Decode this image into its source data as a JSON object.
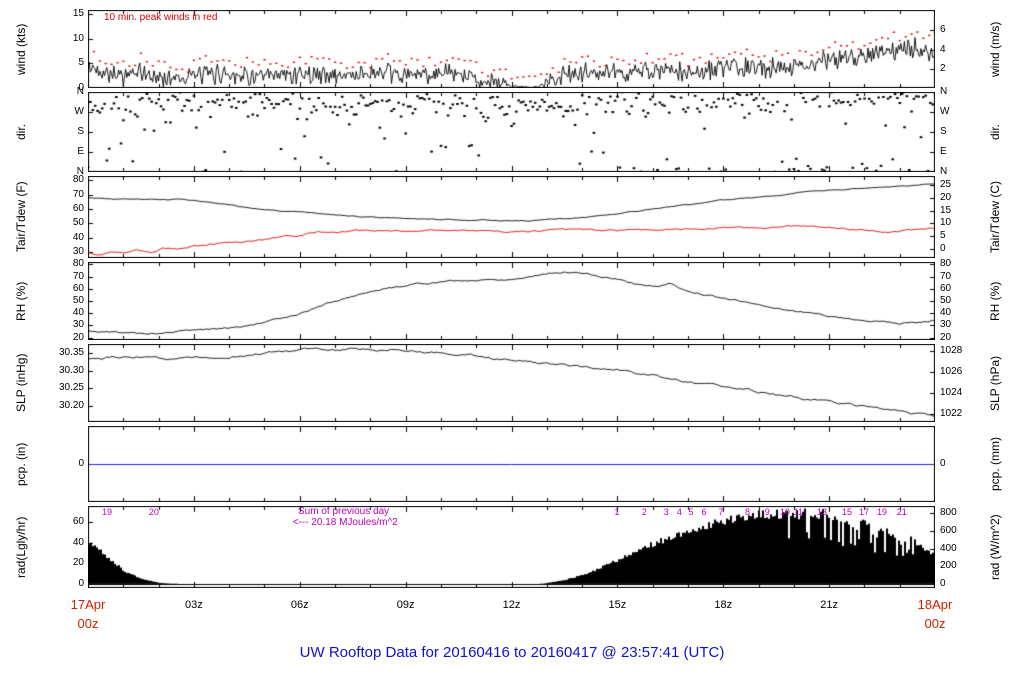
{
  "title": "UW Rooftop Data for 20160416  to  20160417 @ 23:57:41  (UTC)",
  "colors": {
    "title_blue": "#1111cc",
    "date_red": "#cc2200",
    "peak_red": "#dd0000",
    "dew_red": "#dd0000",
    "precip_blue": "#2222cc",
    "solar_magenta": "#bb00bb",
    "trace_black": "#000000"
  },
  "x_axis": {
    "range_hours": [
      0,
      24
    ],
    "major_tick_hours": [
      0,
      3,
      6,
      9,
      12,
      15,
      18,
      21,
      24
    ],
    "minor_tick_step_hours": 1,
    "tick_labels": [
      {
        "text": "03z",
        "t": 3
      },
      {
        "text": "06z",
        "t": 6
      },
      {
        "text": "09z",
        "t": 9
      },
      {
        "text": "12z",
        "t": 12
      },
      {
        "text": "15z",
        "t": 15
      },
      {
        "text": "18z",
        "t": 18
      },
      {
        "text": "21z",
        "t": 21
      }
    ],
    "start_date": {
      "line1": "17Apr",
      "line2": "00z",
      "t": 0
    },
    "end_date": {
      "line1": "18Apr",
      "line2": "00z",
      "t": 24
    }
  },
  "chart_data": [
    {
      "id": "wind",
      "type": "line",
      "ylabel_left": "wind (kts)",
      "ylabel_right": "wind (m/s)",
      "yrange": [
        0,
        15.8
      ],
      "left_ticks": {
        "values": [
          0,
          5,
          10,
          15
        ],
        "labels": [
          "0",
          "5",
          "10",
          "15"
        ]
      },
      "right_ticks": {
        "values": [
          3.888,
          7.776,
          11.664
        ],
        "labels": [
          "2",
          "4",
          "6"
        ]
      },
      "annotation": "10 min. peak winds in red",
      "annotation_color": "#dd0000",
      "series": [
        {
          "name": "wind speed (kts)",
          "style": "line",
          "noise_mode": "spiky",
          "color": "#000000",
          "seed": 42,
          "noise": 2.4,
          "step_minutes": 2,
          "is_base": true,
          "points": {
            "t": [
              0,
              0.5,
              1,
              1.5,
              2,
              3,
              4,
              5,
              6,
              7,
              8,
              9,
              10,
              11,
              11.5,
              12,
              12.3,
              12.8,
              13,
              13.5,
              14,
              15,
              16,
              17,
              18,
              19,
              20,
              20.5,
              21,
              22,
              23,
              23.5,
              24
            ],
            "v": [
              4,
              3.5,
              2.5,
              3,
              2,
              2.5,
              3,
              2,
              3,
              2.5,
              3,
              2.5,
              3,
              2,
              1,
              0.3,
              0.1,
              0.1,
              1.5,
              2.5,
              3,
              3,
              3.5,
              3,
              4,
              4,
              4.5,
              5,
              5.5,
              7,
              7.5,
              8,
              6.5
            ]
          }
        },
        {
          "name": "10 min. peak wind (kts)",
          "style": "peaks",
          "color": "#dd0000",
          "seed": 43,
          "interval_minutes": 10,
          "extra": [
            0.7,
            2.3
          ]
        }
      ]
    },
    {
      "id": "dir",
      "type": "scatter",
      "ylabel_left": "dir.",
      "ylabel_right": "dir.",
      "yrange": [
        0,
        360
      ],
      "left_ticks": {
        "values": [
          360,
          270,
          180,
          90,
          0
        ],
        "labels": [
          "N",
          "W",
          "S",
          "E",
          "N"
        ]
      },
      "right_ticks": {
        "values": [
          360,
          270,
          180,
          90,
          0
        ],
        "labels": [
          "N",
          "W",
          "S",
          "E",
          "N"
        ]
      },
      "series": [
        {
          "name": "wind direction (deg)",
          "style": "scatter",
          "color": "#000000",
          "seed": 7,
          "step_minutes": 4,
          "spread_deg": 70,
          "random_fraction": 0.2,
          "points": {
            "t": [
              0,
              2,
              4,
              6,
              8,
              10,
              12,
              14,
              16,
              18,
              20,
              22,
              24
            ],
            "v": [
              300,
              290,
              305,
              295,
              300,
              310,
              280,
              300,
              315,
              325,
              330,
              340,
              330
            ]
          }
        }
      ]
    },
    {
      "id": "tair",
      "type": "line",
      "ylabel_left": "Tair/Tdew (F)",
      "ylabel_right": "Tair/Tdew (C)",
      "yrange": [
        26,
        83
      ],
      "left_ticks": {
        "values": [
          30,
          40,
          50,
          60,
          70,
          80
        ],
        "labels": [
          "30",
          "40",
          "50",
          "60",
          "70",
          "80"
        ]
      },
      "right_ticks": {
        "values": [
          32,
          41,
          50,
          59,
          68,
          77
        ],
        "labels": [
          "0",
          "5",
          "10",
          "15",
          "20",
          "25"
        ]
      },
      "series": [
        {
          "name": "air temperature (F)",
          "style": "line",
          "color": "#000000",
          "seed": 3,
          "noise": 0.5,
          "smooth": 0.8,
          "step_minutes": 4,
          "points": {
            "t": [
              0,
              1,
              2,
              2.5,
              3,
              4,
              5,
              6,
              7,
              8,
              9,
              10,
              11,
              12,
              12.5,
              13,
              14,
              15,
              16,
              17,
              18,
              19,
              20,
              21,
              22,
              23,
              24
            ],
            "v": [
              68,
              67,
              66.5,
              67,
              66,
              62.5,
              59.5,
              57.5,
              56,
              54.5,
              53.5,
              53,
              52.5,
              52,
              52,
              52.5,
              54,
              56.5,
              60,
              63,
              66,
              68.5,
              71,
              73,
              74.5,
              76,
              78
            ]
          }
        },
        {
          "name": "dew point (F)",
          "style": "line",
          "color": "#dd0000",
          "seed": 4,
          "noise": 0.9,
          "smooth": 0.75,
          "step_minutes": 4,
          "points": {
            "t": [
              0,
              0.3,
              0.7,
              1,
              1.4,
              1.8,
              2.1,
              2.5,
              3,
              3.5,
              4,
              4.5,
              5,
              5.5,
              6,
              6.5,
              7,
              7.5,
              8,
              9,
              10,
              11,
              12,
              13,
              14,
              15,
              16,
              17,
              18,
              19,
              20,
              20.5,
              21,
              21.5,
              22,
              22.5,
              23,
              23.5,
              24
            ],
            "v": [
              29.5,
              28.5,
              30,
              29,
              31,
              29.5,
              33,
              32.5,
              34,
              35.5,
              36.5,
              37.5,
              38.5,
              40.5,
              42,
              44,
              43,
              45,
              45,
              44.5,
              45,
              45,
              44.5,
              45,
              45.5,
              45,
              45.5,
              46,
              46.5,
              47,
              48,
              47.5,
              47,
              46,
              45.5,
              44.5,
              45,
              45.5,
              46.5
            ]
          }
        }
      ]
    },
    {
      "id": "rh",
      "type": "line",
      "ylabel_left": "RH (%)",
      "ylabel_right": "RH (%)",
      "yrange": [
        18,
        82
      ],
      "left_ticks": {
        "values": [
          20,
          30,
          40,
          50,
          60,
          70,
          80
        ],
        "labels": [
          "20",
          "30",
          "40",
          "50",
          "60",
          "70",
          "80"
        ]
      },
      "right_ticks": {
        "values": [
          20,
          30,
          40,
          50,
          60,
          70,
          80
        ],
        "labels": [
          "20",
          "30",
          "40",
          "50",
          "60",
          "70",
          "80"
        ]
      },
      "series": [
        {
          "name": "relative humidity (%)",
          "style": "line",
          "color": "#000000",
          "seed": 5,
          "noise": 1.1,
          "smooth": 0.8,
          "step_minutes": 4,
          "points": {
            "t": [
              0,
              0.5,
              1,
              2,
              3,
              4,
              5,
              6,
              7,
              8,
              9,
              10,
              11,
              12,
              12.5,
              13,
              13.5,
              14,
              14.5,
              15,
              15.5,
              16,
              16.5,
              17,
              18,
              19,
              20,
              21,
              22,
              22.5,
              23,
              23.5,
              24
            ],
            "v": [
              25,
              24.5,
              24,
              23.5,
              26,
              28,
              32,
              40,
              50,
              58,
              63,
              66,
              67,
              68,
              70,
              73,
              74,
              73,
              70,
              68,
              64,
              62,
              64,
              58,
              52,
              47,
              42,
              38,
              34,
              33,
              32,
              32.5,
              34
            ]
          }
        }
      ]
    },
    {
      "id": "slp",
      "type": "line",
      "ylabel_left": "SLP (inHg)",
      "ylabel_right": "SLP (hPa)",
      "yrange": [
        30.155,
        30.375
      ],
      "left_ticks": {
        "values": [
          30.2,
          30.25,
          30.3,
          30.35
        ],
        "labels": [
          "30.20",
          "30.25",
          "30.30",
          "30.35"
        ]
      },
      "right_ticks": {
        "values": [
          30.178,
          30.237,
          30.296,
          30.355
        ],
        "labels": [
          "1022",
          "1024",
          "1026",
          "1028"
        ]
      },
      "series": [
        {
          "name": "sea level pressure (inHg)",
          "style": "line",
          "color": "#000000",
          "seed": 6,
          "noise": 0.005,
          "smooth": 0.8,
          "step_minutes": 4,
          "points": {
            "t": [
              0,
              1,
              2,
              3,
              4,
              5,
              6,
              6.5,
              7,
              8,
              9,
              10,
              11,
              12,
              13,
              14,
              15,
              16,
              17,
              18,
              19,
              20,
              21,
              22,
              23,
              24
            ],
            "v": [
              30.335,
              30.34,
              30.33,
              30.335,
              30.34,
              30.35,
              30.36,
              30.365,
              30.36,
              30.36,
              30.355,
              30.35,
              30.34,
              30.33,
              30.32,
              30.31,
              30.3,
              30.285,
              30.27,
              30.255,
              30.24,
              30.225,
              30.21,
              30.2,
              30.185,
              30.17
            ]
          }
        }
      ]
    },
    {
      "id": "pcp",
      "type": "line",
      "ylabel_left": "pcp. (in)",
      "ylabel_right": "pcp. (mm)",
      "yrange": [
        -1,
        1
      ],
      "left_ticks": {
        "values": [
          0
        ],
        "labels": [
          "0"
        ]
      },
      "right_ticks": {
        "values": [
          0
        ],
        "labels": [
          "0"
        ]
      },
      "series": [
        {
          "name": "precipitation (in)",
          "style": "hline",
          "value": 0,
          "color": "#2222cc"
        }
      ]
    },
    {
      "id": "rad",
      "type": "area",
      "ylabel_left": "rad(Lgly/hr)",
      "ylabel_right": "rad (W/m^2)",
      "yrange": [
        -4,
        76
      ],
      "left_ticks": {
        "values": [
          0,
          20,
          40,
          60
        ],
        "labels": [
          "0",
          "20",
          "40",
          "60"
        ]
      },
      "right_ticks": {
        "values": [
          0,
          17.2,
          34.4,
          51.6,
          68.8
        ],
        "labels": [
          "0",
          "200",
          "400",
          "600",
          "800"
        ]
      },
      "marks_color": "#bb00bb",
      "annotations": [
        {
          "text": "Sum of previous day",
          "t": 5.95,
          "dy": 1
        },
        {
          "text": "<--- 20.18 MJoules/m^2",
          "t": 5.8,
          "dy": 12
        }
      ],
      "energy_marks": [
        {
          "label": "19",
          "t": 0.48
        },
        {
          "label": "20",
          "t": 1.81
        },
        {
          "label": "1",
          "t": 15.0
        },
        {
          "label": "2",
          "t": 15.78
        },
        {
          "label": "3",
          "t": 16.4
        },
        {
          "label": "4",
          "t": 16.77
        },
        {
          "label": "5",
          "t": 17.1
        },
        {
          "label": "6",
          "t": 17.47
        },
        {
          "label": "7",
          "t": 17.95
        },
        {
          "label": "8",
          "t": 18.7
        },
        {
          "label": "9",
          "t": 19.26
        },
        {
          "label": "10",
          "t": 19.69
        },
        {
          "label": "11",
          "t": 20.08
        },
        {
          "label": "13",
          "t": 20.74
        },
        {
          "label": "15",
          "t": 21.45
        },
        {
          "label": "17",
          "t": 21.93
        },
        {
          "label": "19",
          "t": 22.44
        },
        {
          "label": "21",
          "t": 23.0
        }
      ],
      "series": [
        {
          "name": "solar radiation (Lgly/hr)",
          "style": "area",
          "color": "#000000",
          "seed": 8,
          "cloud_dip": {
            "t_start": 19.8,
            "t_end": 23.6,
            "prob": 0.2,
            "factor": 0.55
          },
          "points": {
            "t": [
              0,
              0.3,
              0.7,
              1,
              1.5,
              2,
              2.5,
              3,
              12.8,
              13,
              13.5,
              14,
              14.5,
              15,
              15.5,
              16,
              16.5,
              17,
              17.5,
              18,
              18.5,
              19,
              19.5,
              19.8,
              20,
              20.3,
              20.5,
              20.8,
              21,
              21.3,
              21.6,
              22,
              22.3,
              22.6,
              23,
              23.3,
              23.6,
              24
            ],
            "v": [
              42,
              34,
              22,
              13,
              5,
              1,
              0,
              0,
              0,
              1,
              4,
              9,
              16,
              24,
              32,
              40,
              47,
              53,
              59,
              63,
              66,
              69,
              70.5,
              71,
              69,
              71,
              66,
              70,
              62,
              67,
              55,
              63,
              48,
              56,
              42,
              45,
              36,
              28
            ]
          }
        }
      ]
    }
  ]
}
